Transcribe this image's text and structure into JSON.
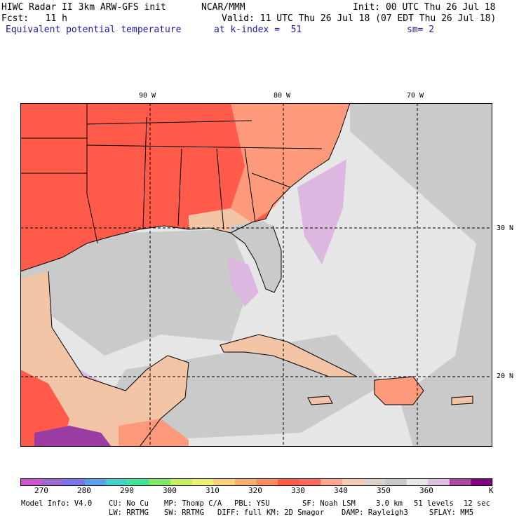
{
  "header": {
    "title": "HIWC Radar II 3km ARW-GFS init",
    "source": "NCAR/MMM",
    "init": "Init: 00 UTC Thu 26 Jul 18",
    "fcst": "Fcst:   11 h",
    "valid": "Valid: 11 UTC Thu 26 Jul 18 (07 EDT Thu 26 Jul 18)",
    "field": "Equivalent potential temperature",
    "level": "at k-index =  51",
    "smooth": "sm= 2"
  },
  "map": {
    "lon_labels": [
      "90 W",
      "80 W",
      "70 W"
    ],
    "lat_labels": [
      "30 N",
      "20 N"
    ],
    "colors": {
      "hot": "#ff5a4a",
      "warm": "#fd9a7c",
      "tan": "#f3c5a6",
      "gray": "#cacaca",
      "light": "#e6e6e6",
      "lilac": "#dcb8e0",
      "purple": "#9b3ca3"
    }
  },
  "colorbar": {
    "colors": [
      "#cc55cc",
      "#9b69cf",
      "#7b73e8",
      "#5aa1e6",
      "#3fd2cd",
      "#3ee49a",
      "#7fe867",
      "#c7ef5b",
      "#f0ef75",
      "#f7d27a",
      "#f8b06e",
      "#fc8b62",
      "#fd5a48",
      "#fc685c",
      "#fea590",
      "#f6cbb4",
      "#dad2cb",
      "#c8c8c8",
      "#e7e7e7",
      "#ddbfe2",
      "#a8489d",
      "#800080"
    ],
    "labels": [
      "270",
      "280",
      "290",
      "300",
      "310",
      "320",
      "330",
      "340",
      "350",
      "360",
      "K"
    ]
  },
  "footer": {
    "line1": [
      "Model Info: V4.0",
      "CU: No Cu",
      "MP: Thomp C/A",
      "PBL: YSU",
      "SF: Noah LSM",
      "3.0 km",
      "51 levels",
      "12 sec"
    ],
    "line2": [
      "LW: RRTMG",
      "SW: RRTMG",
      "DIFF: full",
      "KM: 2D Smagor",
      "DAMP: Rayleigh3",
      "SFLAY: MM5"
    ]
  }
}
